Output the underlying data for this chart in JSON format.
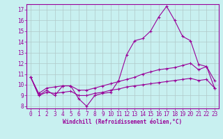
{
  "xlabel": "Windchill (Refroidissement éolien,°C)",
  "bg_color": "#c8f0f0",
  "grid_color": "#b0c8c8",
  "line_color": "#990099",
  "xlim": [
    -0.5,
    23.5
  ],
  "ylim": [
    7.8,
    17.5
  ],
  "yticks": [
    8,
    9,
    10,
    11,
    12,
    13,
    14,
    15,
    16,
    17
  ],
  "xticks": [
    0,
    1,
    2,
    3,
    4,
    5,
    6,
    7,
    8,
    9,
    10,
    11,
    12,
    13,
    14,
    15,
    16,
    17,
    18,
    19,
    20,
    21,
    22,
    23
  ],
  "line1_x": [
    0,
    1,
    2,
    3,
    4,
    5,
    6,
    7,
    8,
    9,
    10,
    11,
    12,
    13,
    14,
    15,
    16,
    17,
    18,
    19,
    20,
    21,
    22,
    23
  ],
  "line1_y": [
    10.7,
    9.0,
    9.5,
    9.0,
    9.9,
    9.9,
    8.7,
    8.0,
    9.0,
    9.2,
    9.3,
    10.4,
    12.8,
    14.1,
    14.3,
    15.0,
    16.3,
    17.3,
    16.0,
    14.5,
    14.1,
    11.9,
    11.7,
    10.4
  ],
  "line2_x": [
    0,
    1,
    2,
    3,
    4,
    5,
    6,
    7,
    8,
    9,
    10,
    11,
    12,
    13,
    14,
    15,
    16,
    17,
    18,
    19,
    20,
    21,
    22,
    23
  ],
  "line2_y": [
    10.7,
    9.2,
    9.7,
    9.8,
    9.9,
    9.9,
    9.5,
    9.5,
    9.7,
    9.9,
    10.1,
    10.3,
    10.5,
    10.7,
    11.0,
    11.2,
    11.4,
    11.5,
    11.6,
    11.8,
    12.0,
    11.4,
    11.7,
    9.7
  ],
  "line3_x": [
    0,
    1,
    2,
    3,
    4,
    5,
    6,
    7,
    8,
    9,
    10,
    11,
    12,
    13,
    14,
    15,
    16,
    17,
    18,
    19,
    20,
    21,
    22,
    23
  ],
  "line3_y": [
    10.7,
    9.0,
    9.3,
    9.2,
    9.3,
    9.4,
    9.0,
    9.0,
    9.2,
    9.3,
    9.5,
    9.6,
    9.8,
    9.9,
    10.0,
    10.1,
    10.2,
    10.3,
    10.4,
    10.5,
    10.6,
    10.4,
    10.5,
    9.7
  ],
  "marker": "+",
  "markersize": 3,
  "linewidth": 0.8,
  "tick_fontsize": 5.5,
  "xlabel_fontsize": 5.5
}
